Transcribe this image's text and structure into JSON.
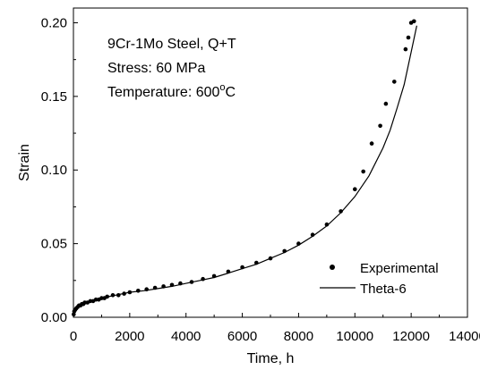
{
  "chart_data": {
    "type": "scatter",
    "xlabel": "Time, h",
    "ylabel": "Strain",
    "xlim": [
      0,
      14000
    ],
    "ylim": [
      0,
      0.21
    ],
    "x_ticks": [
      0,
      2000,
      4000,
      6000,
      8000,
      10000,
      12000,
      14000
    ],
    "y_ticks": [
      0.0,
      0.05,
      0.1,
      0.15,
      0.2
    ],
    "x_tick_labels": [
      "0",
      "2000",
      "4000",
      "6000",
      "8000",
      "10000",
      "12000",
      "14000"
    ],
    "y_tick_labels": [
      "0.00",
      "0.05",
      "0.10",
      "0.15",
      "0.20"
    ],
    "grid": false,
    "legend_position": "bottom-right",
    "annotations": {
      "line1": "9Cr-1Mo Steel, Q+T",
      "line2": "Stress: 60 MPa",
      "line3_prefix": "Temperature: 600",
      "line3_sup": "o",
      "line3_suffix": "C"
    },
    "series": [
      {
        "name": "Experimental",
        "style": "markers",
        "color": "#000000",
        "x": [
          10,
          30,
          60,
          100,
          150,
          200,
          250,
          300,
          350,
          400,
          500,
          600,
          700,
          800,
          900,
          1000,
          1100,
          1200,
          1400,
          1600,
          1800,
          2000,
          2300,
          2600,
          2900,
          3200,
          3500,
          3800,
          4200,
          4600,
          5000,
          5500,
          6000,
          6500,
          7000,
          7500,
          8000,
          8500,
          9000,
          9500,
          10000,
          10300,
          10600,
          10900,
          11100,
          11400,
          11800,
          11900,
          12000,
          12100
        ],
        "y": [
          0.002,
          0.004,
          0.005,
          0.006,
          0.007,
          0.008,
          0.008,
          0.009,
          0.009,
          0.01,
          0.01,
          0.011,
          0.011,
          0.012,
          0.012,
          0.013,
          0.013,
          0.014,
          0.015,
          0.015,
          0.016,
          0.017,
          0.018,
          0.019,
          0.02,
          0.021,
          0.022,
          0.023,
          0.024,
          0.026,
          0.028,
          0.031,
          0.034,
          0.037,
          0.04,
          0.045,
          0.05,
          0.056,
          0.063,
          0.072,
          0.087,
          0.099,
          0.118,
          0.13,
          0.145,
          0.16,
          0.182,
          0.19,
          0.2,
          0.201
        ]
      },
      {
        "name": "Theta-6",
        "style": "line",
        "color": "#000000",
        "x": [
          0,
          25,
          50,
          100,
          200,
          300,
          500,
          750,
          1000,
          1500,
          2000,
          2500,
          3000,
          3500,
          4000,
          4500,
          5000,
          5500,
          6000,
          6500,
          7000,
          7500,
          8000,
          8500,
          9000,
          9500,
          10000,
          10500,
          11000,
          11250,
          11500,
          11750,
          12000,
          12200
        ],
        "y": [
          0.0,
          0.003,
          0.004,
          0.0055,
          0.0075,
          0.0085,
          0.01,
          0.0115,
          0.013,
          0.015,
          0.017,
          0.018,
          0.0195,
          0.021,
          0.023,
          0.025,
          0.027,
          0.03,
          0.033,
          0.036,
          0.04,
          0.044,
          0.049,
          0.055,
          0.062,
          0.071,
          0.082,
          0.096,
          0.115,
          0.127,
          0.142,
          0.158,
          0.18,
          0.198
        ]
      }
    ]
  }
}
